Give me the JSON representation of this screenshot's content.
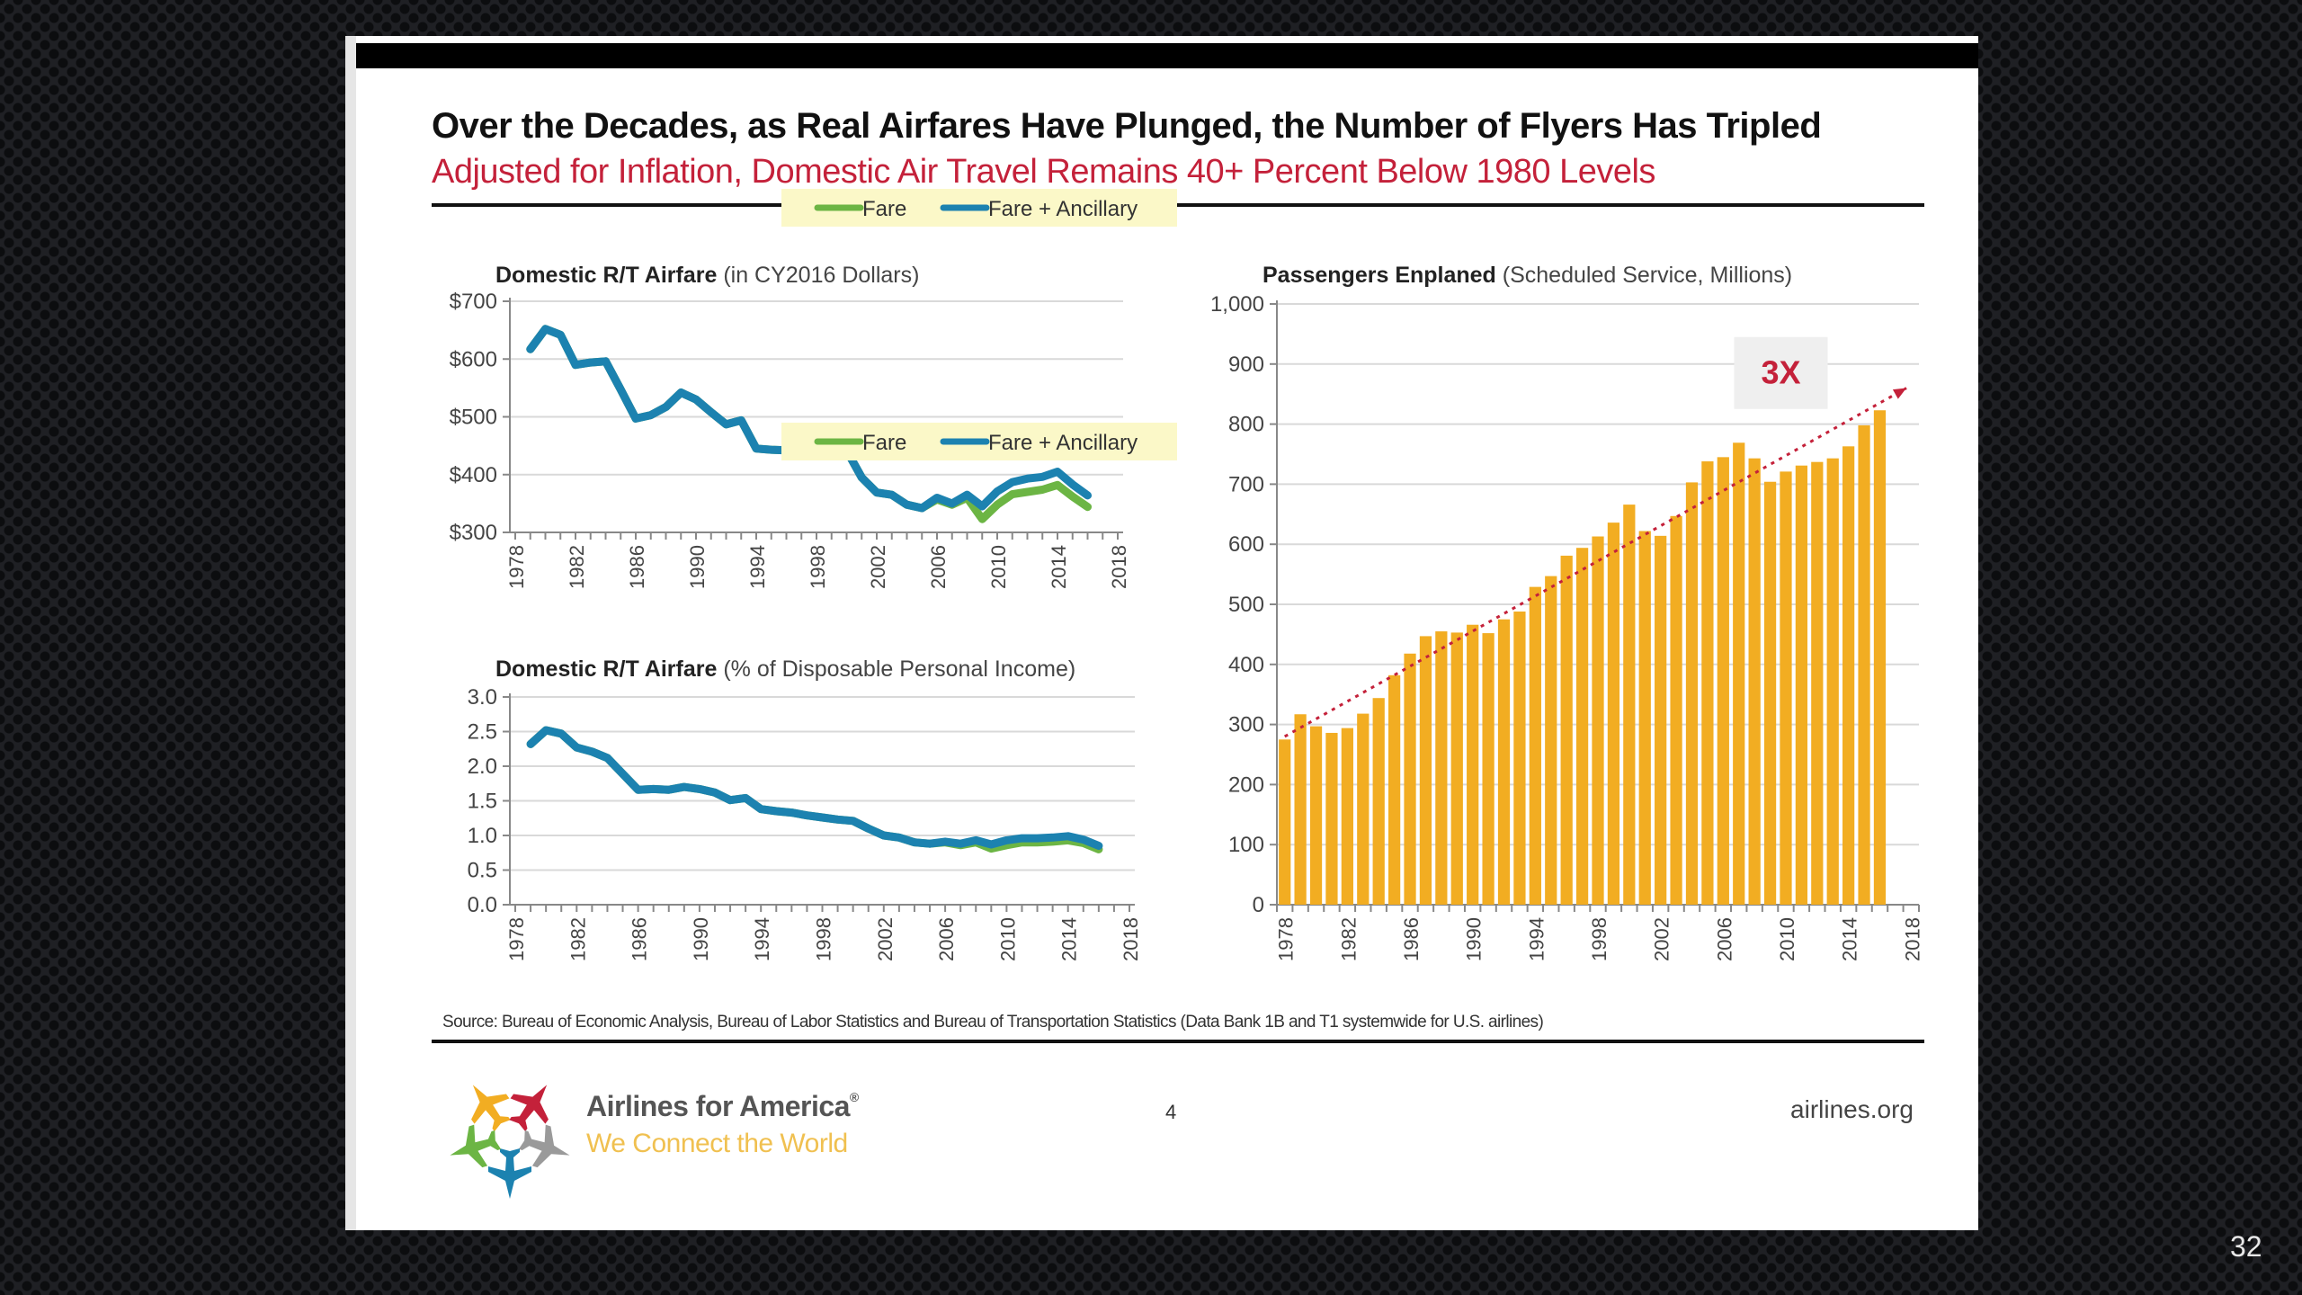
{
  "slide": {
    "title": "Over the Decades, as Real Airfares Have Plunged, the Number of Flyers Has Tripled",
    "subtitle": "Adjusted for Inflation, Domestic Air Travel Remains 40+ Percent Below 1980 Levels",
    "source": "Source: Bureau of Economic Analysis, Bureau of Labor Statistics and Bureau of Transportation Statistics (Data Bank 1B and T1 systemwide for U.S. airlines)",
    "page_number": "4",
    "website": "airlines.org",
    "brand_name": "Airlines for America",
    "brand_mark": "®",
    "brand_tagline": "We Connect the World",
    "presentation_slide_number": "32",
    "colors": {
      "fare": "#6cb544",
      "fare_ancillary": "#1c82b0",
      "bars": "#f2ad22",
      "accent_red": "#c4213a",
      "legend_bg": "#fbf8c8"
    }
  },
  "chart_data": [
    {
      "type": "line",
      "title_bold": "Domestic R/T Airfare",
      "title_rest": " (in CY2016 Dollars)",
      "xlabel": "",
      "ylabel": "",
      "ylim": [
        300,
        700
      ],
      "yticks": [
        300,
        400,
        500,
        600,
        700
      ],
      "ytick_labels": [
        "$300",
        "$400",
        "$500",
        "$600",
        "$700"
      ],
      "xlim": [
        1978,
        2018
      ],
      "xticks": [
        1978,
        1982,
        1986,
        1990,
        1994,
        1998,
        2002,
        2006,
        2010,
        2014,
        2018
      ],
      "grid": true,
      "legend": "top-right",
      "x": [
        1979,
        1980,
        1981,
        1982,
        1983,
        1984,
        1985,
        1986,
        1987,
        1988,
        1989,
        1990,
        1991,
        1992,
        1993,
        1994,
        1995,
        1996,
        1997,
        1998,
        1999,
        2000,
        2001,
        2002,
        2003,
        2004,
        2005,
        2006,
        2007,
        2008,
        2009,
        2010,
        2011,
        2012,
        2013,
        2014,
        2015,
        2016
      ],
      "series": [
        {
          "name": "Fare",
          "values": [
            617,
            652,
            642,
            590,
            594,
            596,
            547,
            497,
            503,
            517,
            542,
            530,
            508,
            487,
            494,
            445,
            443,
            442,
            437,
            438,
            434,
            442,
            395,
            369,
            365,
            348,
            342,
            357,
            348,
            360,
            323,
            348,
            366,
            370,
            374,
            382,
            362,
            344
          ]
        },
        {
          "name": "Fare + Ancillary",
          "values": [
            617,
            652,
            642,
            590,
            594,
            596,
            547,
            497,
            503,
            517,
            542,
            530,
            508,
            487,
            494,
            445,
            443,
            442,
            437,
            438,
            434,
            442,
            395,
            369,
            365,
            348,
            342,
            360,
            350,
            365,
            345,
            371,
            387,
            393,
            396,
            405,
            383,
            364
          ]
        }
      ]
    },
    {
      "type": "line",
      "title_bold": "Domestic R/T Airfare",
      "title_rest": " (% of Disposable Personal Income)",
      "xlabel": "",
      "ylabel": "",
      "ylim": [
        0,
        3.0
      ],
      "yticks": [
        0,
        0.5,
        1.0,
        1.5,
        2.0,
        2.5,
        3.0
      ],
      "ytick_labels": [
        "0.0",
        "0.5",
        "1.0",
        "1.5",
        "2.0",
        "2.5",
        "3.0"
      ],
      "xlim": [
        1978,
        2018
      ],
      "xticks": [
        1978,
        1982,
        1986,
        1990,
        1994,
        1998,
        2002,
        2006,
        2010,
        2014,
        2018
      ],
      "grid": true,
      "legend": "top-right",
      "x": [
        1979,
        1980,
        1981,
        1982,
        1983,
        1984,
        1985,
        1986,
        1987,
        1988,
        1989,
        1990,
        1991,
        1992,
        1993,
        1994,
        1995,
        1996,
        1997,
        1998,
        1999,
        2000,
        2001,
        2002,
        2003,
        2004,
        2005,
        2006,
        2007,
        2008,
        2009,
        2010,
        2011,
        2012,
        2013,
        2014,
        2015,
        2016
      ],
      "series": [
        {
          "name": "Fare",
          "values": [
            2.32,
            2.52,
            2.47,
            2.27,
            2.21,
            2.12,
            1.89,
            1.66,
            1.67,
            1.66,
            1.7,
            1.67,
            1.62,
            1.51,
            1.54,
            1.38,
            1.35,
            1.33,
            1.29,
            1.26,
            1.23,
            1.21,
            1.1,
            1.0,
            0.97,
            0.9,
            0.88,
            0.9,
            0.86,
            0.9,
            0.81,
            0.86,
            0.9,
            0.9,
            0.91,
            0.93,
            0.89,
            0.8
          ]
        },
        {
          "name": "Fare + Ancillary",
          "values": [
            2.32,
            2.52,
            2.47,
            2.27,
            2.21,
            2.12,
            1.89,
            1.66,
            1.67,
            1.66,
            1.7,
            1.67,
            1.62,
            1.51,
            1.54,
            1.38,
            1.35,
            1.33,
            1.29,
            1.26,
            1.23,
            1.21,
            1.1,
            1.0,
            0.97,
            0.9,
            0.88,
            0.91,
            0.88,
            0.93,
            0.87,
            0.93,
            0.96,
            0.96,
            0.97,
            0.99,
            0.94,
            0.85
          ]
        }
      ]
    },
    {
      "type": "bar",
      "title_bold": "Passengers Enplaned",
      "title_rest": " (Scheduled Service, Millions)",
      "xlabel": "",
      "ylabel": "",
      "ylim": [
        0,
        1000
      ],
      "yticks": [
        0,
        100,
        200,
        300,
        400,
        500,
        600,
        700,
        800,
        900,
        1000
      ],
      "ytick_labels": [
        "0",
        "100",
        "200",
        "300",
        "400",
        "500",
        "600",
        "700",
        "800",
        "900",
        "1,000"
      ],
      "xticks": [
        1978,
        1982,
        1986,
        1990,
        1994,
        1998,
        2002,
        2006,
        2010,
        2014,
        2018
      ],
      "grid": true,
      "categories": [
        1978,
        1979,
        1980,
        1981,
        1982,
        1983,
        1984,
        1985,
        1986,
        1987,
        1988,
        1989,
        1990,
        1991,
        1992,
        1993,
        1994,
        1995,
        1996,
        1997,
        1998,
        1999,
        2000,
        2001,
        2002,
        2003,
        2004,
        2005,
        2006,
        2007,
        2008,
        2009,
        2010,
        2011,
        2012,
        2013,
        2014,
        2015,
        2016
      ],
      "values": [
        275,
        317,
        297,
        286,
        294,
        318,
        344,
        382,
        418,
        447,
        455,
        453,
        466,
        452,
        475,
        488,
        529,
        547,
        581,
        594,
        613,
        636,
        666,
        622,
        614,
        647,
        703,
        738,
        745,
        769,
        743,
        704,
        721,
        731,
        737,
        743,
        763,
        798,
        823
      ],
      "annotation": {
        "label": "3X",
        "trend_from": {
          "year": 1978,
          "value": 280
        },
        "trend_to": {
          "year": 2017,
          "value": 860
        }
      }
    }
  ]
}
